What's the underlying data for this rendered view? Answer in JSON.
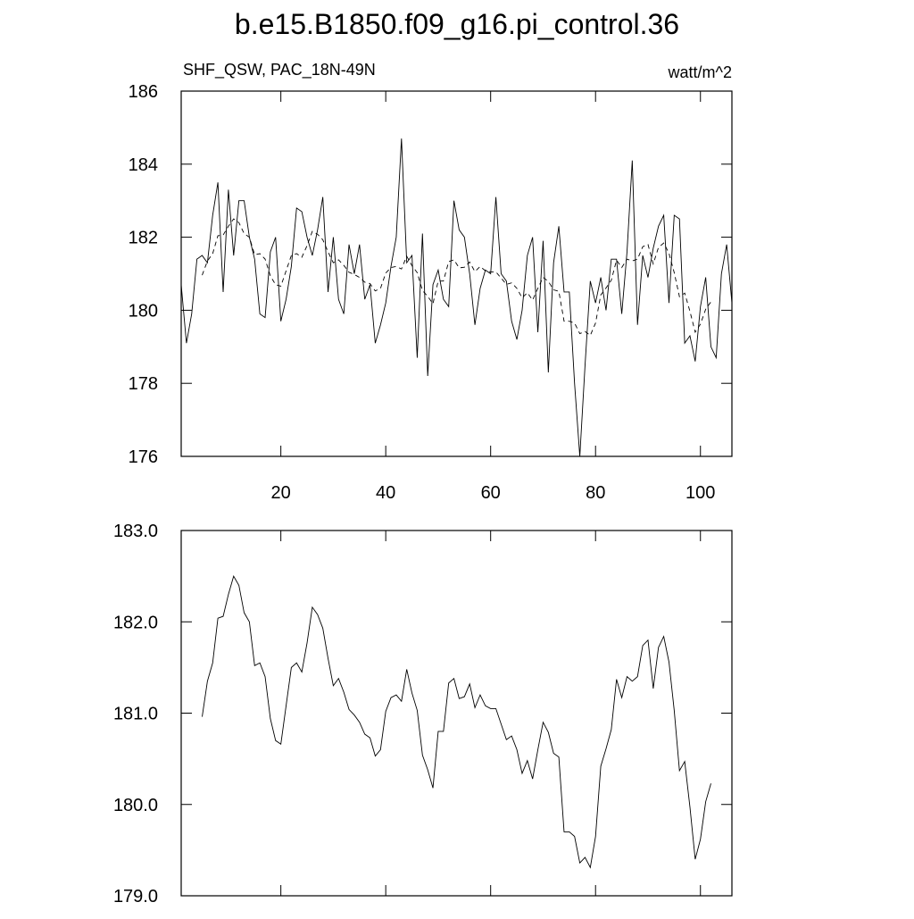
{
  "chart_data": [
    {
      "type": "line",
      "title": "b.e15.B1850.f09_g16.pi_control.36",
      "left_string": "SHF_QSW, PAC_18N-49N",
      "right_string": "watt/m^2",
      "xlim": [
        1,
        106
      ],
      "xticks": [
        20,
        40,
        60,
        80,
        100
      ],
      "xtick_labels_shown": true,
      "ylim": [
        176,
        186
      ],
      "yticks": [
        176,
        178,
        180,
        182,
        184,
        186
      ],
      "x": [
        1,
        2,
        3,
        4,
        5,
        6,
        7,
        8,
        9,
        10,
        11,
        12,
        13,
        14,
        15,
        16,
        17,
        18,
        19,
        20,
        21,
        22,
        23,
        24,
        25,
        26,
        27,
        28,
        29,
        30,
        31,
        32,
        33,
        34,
        35,
        36,
        37,
        38,
        39,
        40,
        41,
        42,
        43,
        44,
        45,
        46,
        47,
        48,
        49,
        50,
        51,
        52,
        53,
        54,
        55,
        56,
        57,
        58,
        59,
        60,
        61,
        62,
        63,
        64,
        65,
        66,
        67,
        68,
        69,
        70,
        71,
        72,
        73,
        74,
        75,
        76,
        77,
        78,
        79,
        80,
        81,
        82,
        83,
        84,
        85,
        86,
        87,
        88,
        89,
        90,
        91,
        92,
        93,
        94,
        95,
        96,
        97,
        98,
        99,
        100,
        101,
        102,
        103,
        104,
        105,
        106
      ],
      "series": [
        {
          "color": "#000000",
          "style": "solid",
          "values": [
            180.7,
            179.1,
            179.9,
            181.4,
            181.5,
            181.3,
            182.6,
            183.5,
            180.5,
            183.3,
            181.5,
            183.0,
            183.0,
            182.0,
            181.4,
            179.9,
            179.8,
            181.6,
            182.0,
            179.7,
            180.3,
            181.2,
            182.8,
            182.7,
            182.0,
            181.5,
            182.2,
            183.1,
            180.5,
            182.0,
            180.3,
            179.9,
            181.8,
            181.0,
            181.8,
            180.3,
            180.7,
            179.1,
            179.6,
            180.2,
            181.2,
            182.0,
            184.7,
            181.3,
            181.5,
            178.7,
            182.1,
            178.2,
            180.7,
            181.1,
            180.3,
            180.1,
            183.0,
            182.2,
            182.0,
            181.0,
            179.6,
            180.6,
            181.1,
            181.0,
            183.1,
            181.0,
            180.8,
            179.7,
            179.2,
            180.0,
            181.5,
            182.0,
            179.4,
            181.9,
            178.3,
            181.3,
            182.3,
            180.5,
            180.5,
            178.0,
            176.0,
            178.5,
            180.8,
            180.2,
            180.9,
            180.0,
            181.4,
            181.4,
            179.9,
            181.6,
            184.1,
            179.6,
            181.5,
            180.9,
            181.7,
            182.3,
            182.6,
            180.2,
            182.6,
            182.5,
            179.1,
            179.3,
            178.6,
            180.1,
            180.9,
            179.0,
            178.7,
            181.0,
            181.8,
            180.2
          ]
        },
        {
          "color": "#000000",
          "style": "dashed",
          "values": [
            null,
            null,
            null,
            null,
            180.96,
            181.35,
            181.55,
            182.04,
            182.06,
            182.3,
            182.5,
            182.4,
            182.1,
            182.0,
            181.52,
            181.55,
            181.4,
            180.94,
            180.7,
            180.66,
            181.08,
            181.5,
            181.55,
            181.45,
            181.77,
            182.16,
            182.08,
            181.93,
            181.6,
            181.3,
            181.38,
            181.23,
            181.04,
            180.98,
            180.9,
            180.77,
            180.73,
            180.53,
            180.6,
            181.02,
            181.17,
            181.2,
            181.13,
            181.48,
            181.22,
            181.03,
            180.54,
            180.38,
            180.18,
            180.8,
            180.8,
            181.33,
            181.38,
            181.16,
            181.18,
            181.32,
            181.06,
            181.2,
            181.08,
            181.05,
            181.05,
            180.88,
            180.71,
            180.75,
            180.6,
            180.34,
            180.48,
            180.28,
            180.6,
            180.9,
            180.79,
            180.56,
            180.52,
            179.7,
            179.7,
            179.65,
            179.36,
            179.42,
            179.31,
            179.65,
            180.42,
            180.61,
            180.82,
            181.37,
            181.17,
            181.4,
            181.35,
            181.4,
            181.74,
            181.8,
            181.27,
            181.72,
            181.84,
            181.56,
            181.03,
            180.37,
            180.47,
            179.97,
            179.4,
            179.62,
            180.03,
            180.23,
            null,
            null,
            null,
            null
          ]
        }
      ]
    },
    {
      "type": "line",
      "xlim": [
        1,
        106
      ],
      "xticks": [
        20,
        40,
        60,
        80,
        100
      ],
      "xtick_labels_shown": false,
      "ylim": [
        179,
        183
      ],
      "yticks": [
        {
          "value": 179,
          "label": "179.0"
        },
        {
          "value": 180,
          "label": "180.0"
        },
        {
          "value": 181,
          "label": "181.0"
        },
        {
          "value": 182,
          "label": "182.0"
        },
        {
          "value": 183,
          "label": "183.0"
        }
      ],
      "x": [
        1,
        2,
        3,
        4,
        5,
        6,
        7,
        8,
        9,
        10,
        11,
        12,
        13,
        14,
        15,
        16,
        17,
        18,
        19,
        20,
        21,
        22,
        23,
        24,
        25,
        26,
        27,
        28,
        29,
        30,
        31,
        32,
        33,
        34,
        35,
        36,
        37,
        38,
        39,
        40,
        41,
        42,
        43,
        44,
        45,
        46,
        47,
        48,
        49,
        50,
        51,
        52,
        53,
        54,
        55,
        56,
        57,
        58,
        59,
        60,
        61,
        62,
        63,
        64,
        65,
        66,
        67,
        68,
        69,
        70,
        71,
        72,
        73,
        74,
        75,
        76,
        77,
        78,
        79,
        80,
        81,
        82,
        83,
        84,
        85,
        86,
        87,
        88,
        89,
        90,
        91,
        92,
        93,
        94,
        95,
        96,
        97,
        98,
        99,
        100,
        101,
        102,
        103,
        104,
        105,
        106
      ],
      "series": [
        {
          "color": "#000000",
          "style": "solid",
          "values": [
            null,
            null,
            null,
            null,
            180.96,
            181.35,
            181.55,
            182.04,
            182.06,
            182.3,
            182.5,
            182.4,
            182.1,
            182.0,
            181.52,
            181.55,
            181.4,
            180.94,
            180.7,
            180.66,
            181.08,
            181.5,
            181.55,
            181.45,
            181.77,
            182.16,
            182.08,
            181.93,
            181.6,
            181.3,
            181.38,
            181.23,
            181.04,
            180.98,
            180.9,
            180.77,
            180.73,
            180.53,
            180.6,
            181.02,
            181.17,
            181.2,
            181.13,
            181.48,
            181.22,
            181.03,
            180.54,
            180.38,
            180.18,
            180.8,
            180.8,
            181.33,
            181.38,
            181.16,
            181.18,
            181.32,
            181.06,
            181.2,
            181.08,
            181.05,
            181.05,
            180.88,
            180.71,
            180.75,
            180.6,
            180.34,
            180.48,
            180.28,
            180.6,
            180.9,
            180.79,
            180.56,
            180.52,
            179.7,
            179.7,
            179.65,
            179.36,
            179.42,
            179.31,
            179.65,
            180.42,
            180.61,
            180.82,
            181.37,
            181.17,
            181.4,
            181.35,
            181.4,
            181.74,
            181.8,
            181.27,
            181.72,
            181.84,
            181.56,
            181.03,
            180.37,
            180.47,
            179.97,
            179.4,
            179.62,
            180.03,
            180.23,
            null,
            null,
            null,
            null
          ]
        }
      ]
    }
  ]
}
